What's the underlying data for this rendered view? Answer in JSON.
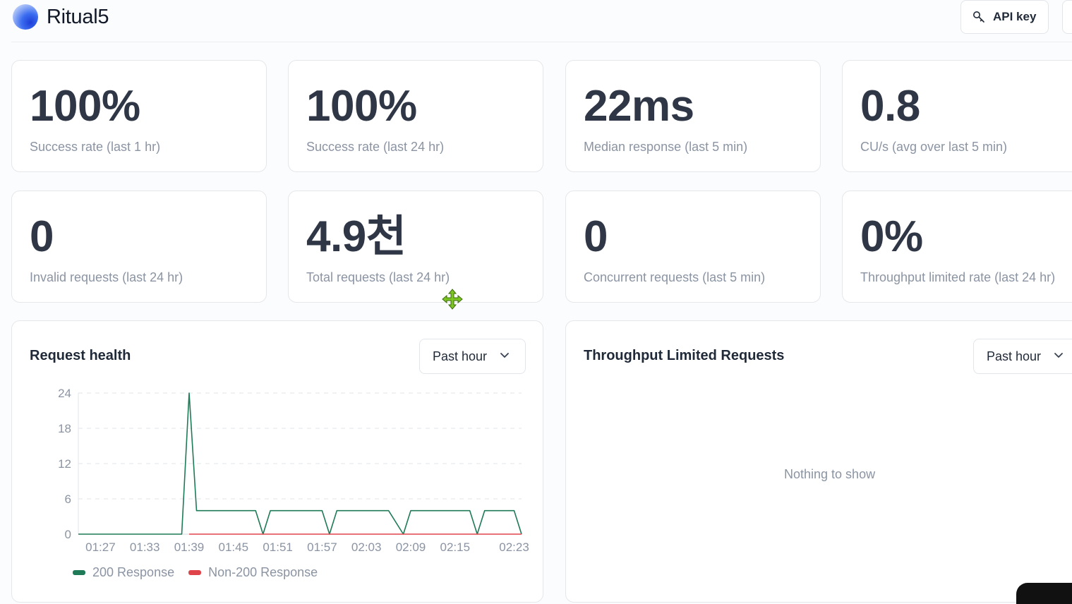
{
  "header": {
    "brand": "Ritual5",
    "api_key_label": "API key"
  },
  "stats": [
    {
      "value": "100%",
      "label": "Success rate (last 1 hr)"
    },
    {
      "value": "100%",
      "label": "Success rate (last 24 hr)"
    },
    {
      "value": "22ms",
      "label": "Median response (last 5 min)"
    },
    {
      "value": "0.8",
      "label": "CU/s (avg over last 5 min)"
    },
    {
      "value": "0",
      "label": "Invalid requests (last 24 hr)"
    },
    {
      "value": "4.9천",
      "label": "Total requests (last 24 hr)"
    },
    {
      "value": "0",
      "label": "Concurrent requests (last 5 min)"
    },
    {
      "value": "0%",
      "label": "Throughput limited rate (last 24 hr)"
    }
  ],
  "request_health": {
    "title": "Request health",
    "range": "Past hour",
    "legend_200": "200 Response",
    "legend_non200": "Non-200 Response",
    "color_200": "#1f7a57",
    "color_non200": "#e0444b"
  },
  "throughput": {
    "title": "Throughput Limited Requests",
    "range": "Past hour",
    "empty": "Nothing to show"
  },
  "chart_data": {
    "type": "line",
    "x_ticks": [
      "01:27",
      "01:33",
      "01:39",
      "01:45",
      "01:51",
      "01:57",
      "02:03",
      "02:09",
      "02:15",
      "02:23"
    ],
    "y_ticks": [
      0,
      6,
      12,
      18,
      24
    ],
    "ylim": [
      0,
      24
    ],
    "grid": true,
    "legend_placement": "bottom-left",
    "series": [
      {
        "name": "200 Response",
        "points": [
          [
            "01:24",
            0
          ],
          [
            "01:38",
            0
          ],
          [
            "01:39",
            24
          ],
          [
            "01:40",
            4
          ],
          [
            "01:48",
            4
          ],
          [
            "01:49",
            0
          ],
          [
            "01:50",
            4
          ],
          [
            "01:57",
            4
          ],
          [
            "01:58",
            0
          ],
          [
            "01:59",
            4
          ],
          [
            "02:06",
            4
          ],
          [
            "02:08",
            0
          ],
          [
            "02:09",
            4
          ],
          [
            "02:17",
            4
          ],
          [
            "02:18",
            0
          ],
          [
            "02:19",
            4
          ],
          [
            "02:23",
            4
          ],
          [
            "02:24",
            0
          ]
        ]
      },
      {
        "name": "Non-200 Response",
        "points": [
          [
            "01:39",
            0
          ],
          [
            "02:24",
            0
          ]
        ]
      }
    ]
  }
}
